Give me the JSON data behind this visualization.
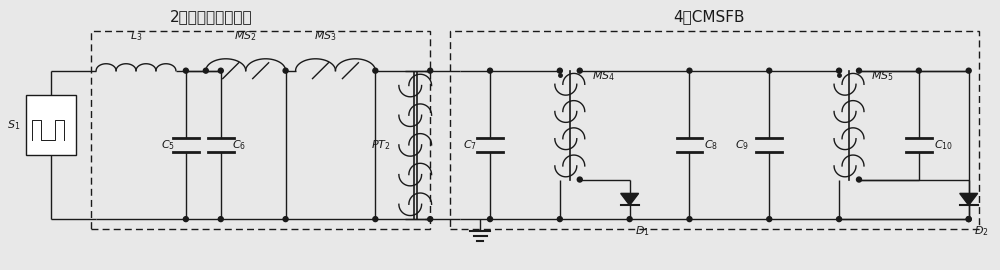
{
  "bg_color": "#e8e8e8",
  "line_color": "#1a1a1a",
  "title1": "2级经典磁压缩电路",
  "title2": "4级CMSFB",
  "font_size_title": 11,
  "font_size_label": 8,
  "figsize": [
    10.0,
    2.7
  ],
  "dpi": 100,
  "lw": 1.0
}
